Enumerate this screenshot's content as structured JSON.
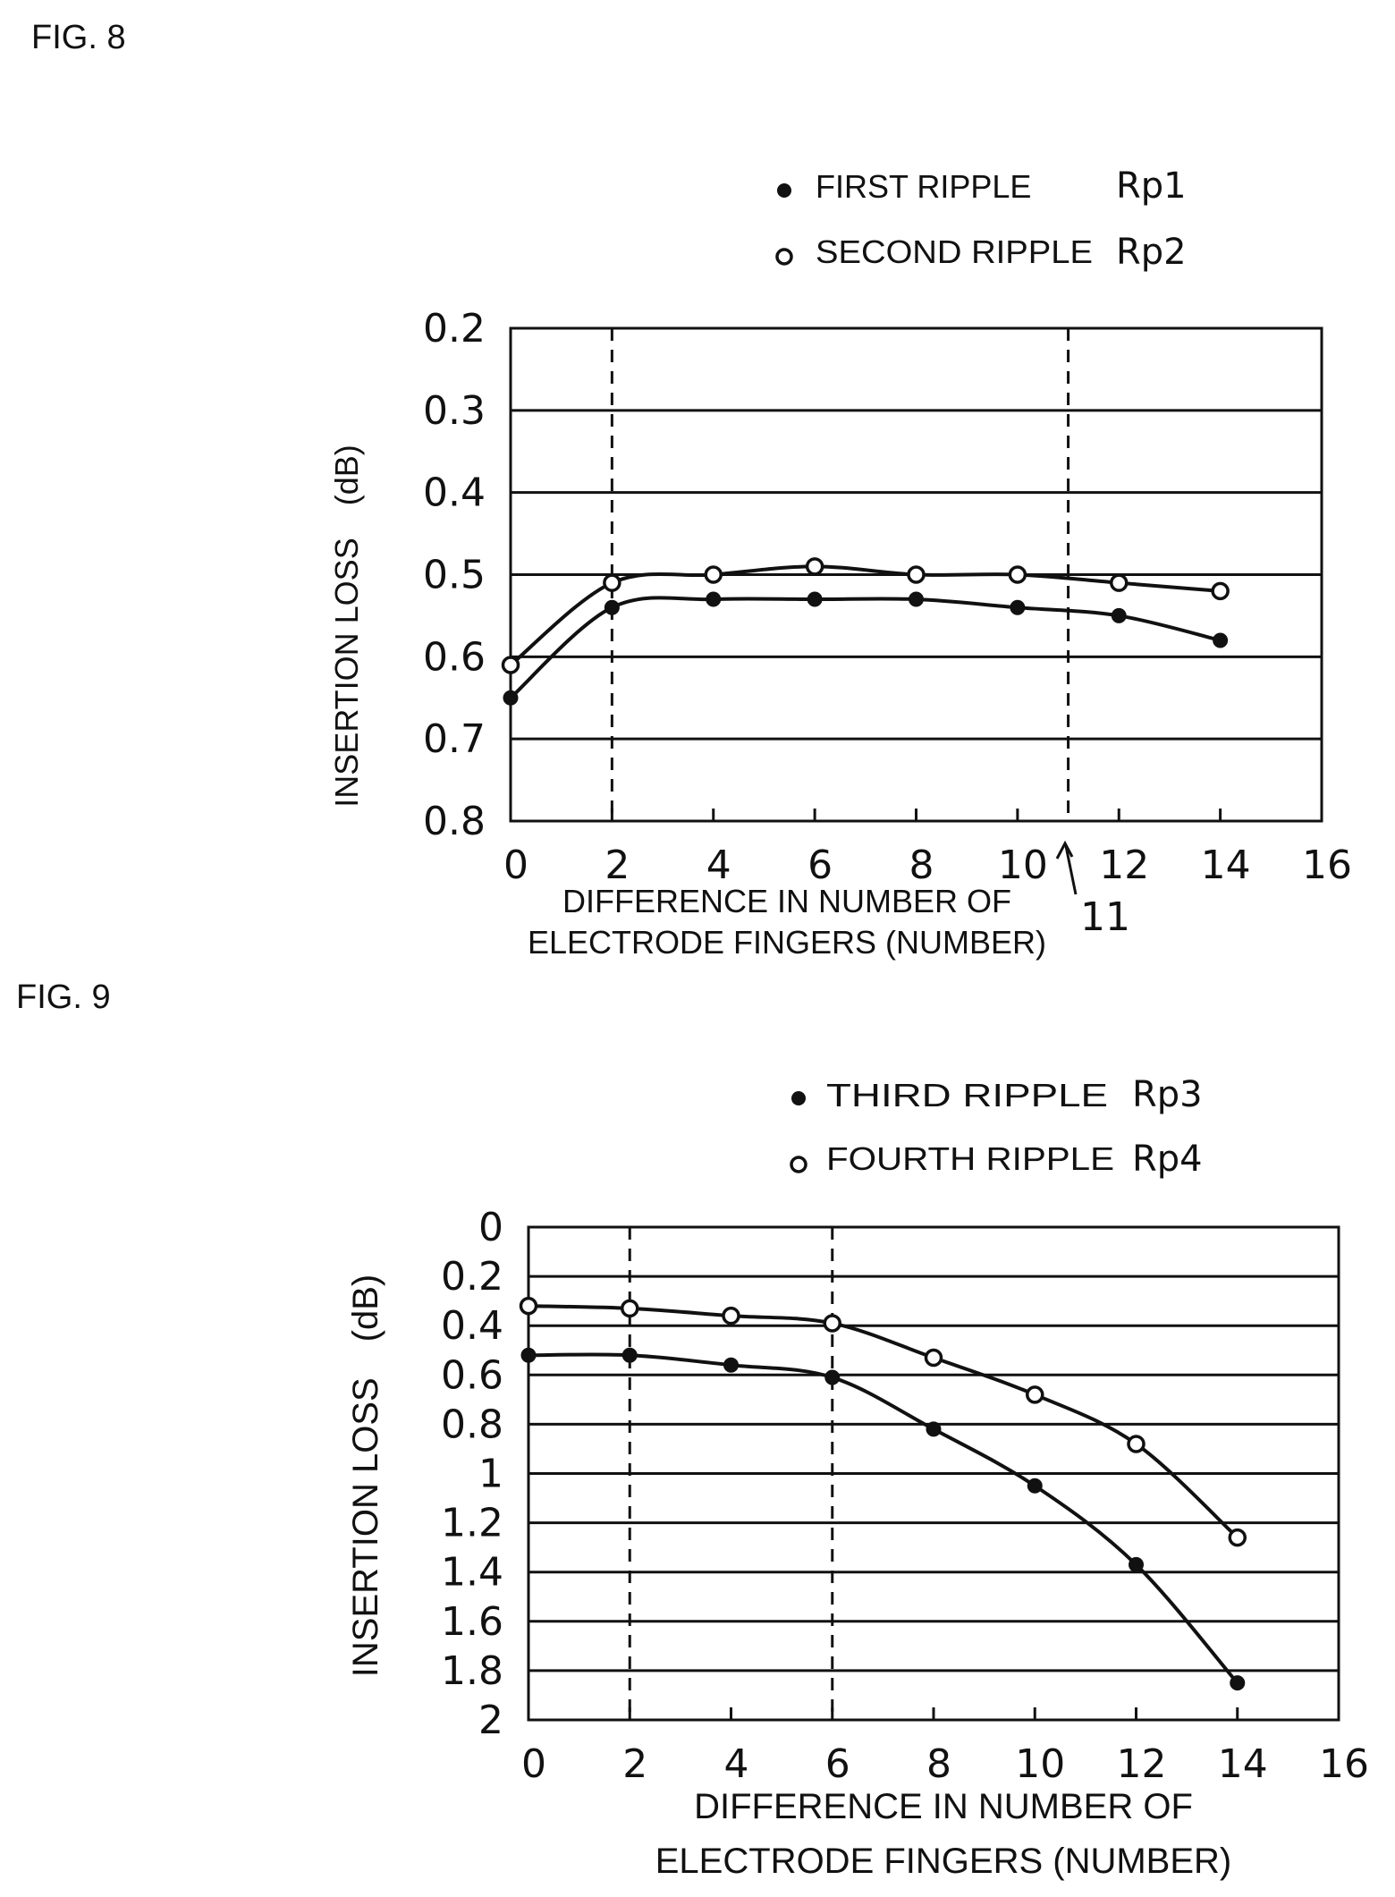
{
  "chart_data": [
    {
      "type": "line",
      "figure_label": "FIG. 8",
      "xlabel_lines": [
        "DIFFERENCE IN NUMBER OF",
        "ELECTRODE FINGERS (NUMBER)"
      ],
      "ylabel": "INSERTION LOSS (dB)",
      "xlim": [
        0,
        16
      ],
      "ylim": [
        0.2,
        0.8
      ],
      "y_inverted": true,
      "x_ticks": [
        "0",
        "2",
        "4",
        "6",
        "8",
        "10",
        "12",
        "14",
        "16"
      ],
      "x_tick_values": [
        0,
        2,
        4,
        6,
        8,
        10,
        12,
        14,
        16
      ],
      "y_ticks": [
        "0.2",
        "0.3",
        "0.4",
        "0.5",
        "0.6",
        "0.7",
        "0.8"
      ],
      "y_tick_values": [
        0.2,
        0.3,
        0.4,
        0.5,
        0.6,
        0.7,
        0.8
      ],
      "grid": "horizontal",
      "legend_position": "top-right",
      "vertical_dashed_lines": [
        2,
        11
      ],
      "annotation": {
        "text": "11",
        "x": 11
      },
      "series": [
        {
          "legend_label": "FIRST RIPPLE",
          "name": "Rp1",
          "marker": "filled",
          "x": [
            0,
            2,
            4,
            6,
            8,
            10,
            12,
            14
          ],
          "values": [
            0.65,
            0.54,
            0.53,
            0.53,
            0.53,
            0.54,
            0.55,
            0.58
          ]
        },
        {
          "legend_label": "SECOND RIPPLE",
          "name": "Rp2",
          "marker": "open",
          "x": [
            0,
            2,
            4,
            6,
            8,
            10,
            12,
            14
          ],
          "values": [
            0.61,
            0.51,
            0.5,
            0.49,
            0.5,
            0.5,
            0.51,
            0.52
          ]
        }
      ]
    },
    {
      "type": "line",
      "figure_label": "FIG. 9",
      "xlabel_lines": [
        "DIFFERENCE IN NUMBER OF",
        "ELECTRODE FINGERS (NUMBER)"
      ],
      "ylabel": "INSERTION LOSS (dB)",
      "xlim": [
        0,
        16
      ],
      "ylim": [
        0,
        2
      ],
      "y_inverted": true,
      "x_ticks": [
        "0",
        "2",
        "4",
        "6",
        "8",
        "10",
        "12",
        "14",
        "16"
      ],
      "x_tick_values": [
        0,
        2,
        4,
        6,
        8,
        10,
        12,
        14,
        16
      ],
      "y_ticks": [
        "0",
        "0.2",
        "0.4",
        "0.6",
        "0.8",
        "1",
        "1.2",
        "1.4",
        "1.6",
        "1.8",
        "2"
      ],
      "y_tick_values": [
        0,
        0.2,
        0.4,
        0.6,
        0.8,
        1,
        1.2,
        1.4,
        1.6,
        1.8,
        2
      ],
      "grid": "horizontal",
      "legend_position": "top-right",
      "vertical_dashed_lines": [
        2,
        6
      ],
      "series": [
        {
          "legend_label": "THIRD RIPPLE",
          "name": "Rp3",
          "marker": "filled",
          "x": [
            0,
            2,
            4,
            6,
            8,
            10,
            12,
            14
          ],
          "values": [
            0.52,
            0.52,
            0.56,
            0.61,
            0.82,
            1.05,
            1.37,
            1.85
          ]
        },
        {
          "legend_label": "FOURTH RIPPLE",
          "name": "Rp4",
          "marker": "open",
          "x": [
            0,
            2,
            4,
            6,
            8,
            10,
            12,
            14
          ],
          "values": [
            0.32,
            0.33,
            0.36,
            0.39,
            0.53,
            0.68,
            0.88,
            1.26
          ]
        }
      ]
    }
  ]
}
